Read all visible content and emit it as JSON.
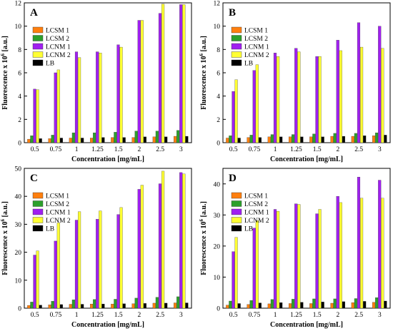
{
  "colors": {
    "LCSM 1": "#ff7f0e",
    "LCSM 2": "#2ca02c",
    "LCNM 1": "#a020f0",
    "LCNM 2": "#ffff33",
    "LB": "#000000"
  },
  "chart_data": [
    {
      "type": "bar",
      "panel": "A",
      "xlabel": "Concentration [mg/mL]",
      "ylabel": "Fluorescence x 10",
      "ylabel_sup": "6",
      "ylabel_unit": " [a.u.]",
      "ylim": [
        0,
        12
      ],
      "yticks": [
        0,
        2,
        4,
        6,
        8,
        10,
        12
      ],
      "legend_position": "top-left",
      "categories": [
        "0.5",
        "0.75",
        "1",
        "1.25",
        "1.5",
        "2",
        "2.5",
        "3"
      ],
      "series": [
        {
          "name": "LCSM 1",
          "values": [
            0.3,
            0.35,
            0.4,
            0.4,
            0.45,
            0.45,
            0.5,
            0.55
          ]
        },
        {
          "name": "LCSM 2",
          "values": [
            0.6,
            0.65,
            0.85,
            0.85,
            0.9,
            1.0,
            1.0,
            1.05
          ]
        },
        {
          "name": "LCNM 1",
          "values": [
            4.6,
            6.0,
            7.8,
            7.8,
            8.4,
            10.5,
            11.1,
            11.85
          ]
        },
        {
          "name": "LCNM 2",
          "values": [
            4.55,
            6.25,
            7.3,
            7.7,
            8.2,
            10.5,
            11.9,
            11.85
          ]
        },
        {
          "name": "LB",
          "values": [
            0.35,
            0.4,
            0.4,
            0.45,
            0.45,
            0.5,
            0.5,
            0.55
          ]
        }
      ]
    },
    {
      "type": "bar",
      "panel": "B",
      "xlabel": "Concentration [mg/mL]",
      "ylabel": "Fluorescence x 10",
      "ylabel_sup": "6",
      "ylabel_unit": " [a.u.]",
      "ylim": [
        0,
        12
      ],
      "yticks": [
        0,
        2,
        4,
        6,
        8,
        10,
        12
      ],
      "legend_position": "top-left",
      "categories": [
        "0.5",
        "0.75",
        "1",
        "1.25",
        "1.5",
        "2",
        "2.5",
        "3"
      ],
      "series": [
        {
          "name": "LCSM 1",
          "values": [
            0.4,
            0.45,
            0.5,
            0.5,
            0.5,
            0.55,
            0.55,
            0.6
          ]
        },
        {
          "name": "LCSM 2",
          "values": [
            0.6,
            0.65,
            0.7,
            0.7,
            0.75,
            0.8,
            0.8,
            0.85
          ]
        },
        {
          "name": "LCNM 1",
          "values": [
            4.4,
            6.2,
            7.7,
            8.1,
            7.4,
            8.8,
            10.3,
            10.0
          ]
        },
        {
          "name": "LCNM 2",
          "values": [
            5.4,
            6.7,
            7.4,
            7.8,
            7.4,
            7.9,
            8.2,
            8.1
          ]
        },
        {
          "name": "LB",
          "values": [
            0.4,
            0.45,
            0.5,
            0.5,
            0.5,
            0.55,
            0.6,
            0.65
          ]
        }
      ]
    },
    {
      "type": "bar",
      "panel": "C",
      "xlabel": "Concentration [mg/mL]",
      "ylabel": "Fluorescence x 10",
      "ylabel_sup": "6",
      "ylabel_unit": " [a.u.]",
      "ylim": [
        0,
        50
      ],
      "yticks": [
        0,
        10,
        20,
        30,
        40,
        50
      ],
      "legend_position": "top-left",
      "categories": [
        "0.5",
        "0.75",
        "1",
        "1.25",
        "1.5",
        "2",
        "2.5",
        "3"
      ],
      "series": [
        {
          "name": "LCSM 1",
          "values": [
            1.0,
            1.2,
            1.4,
            1.5,
            1.5,
            1.6,
            1.8,
            1.9
          ]
        },
        {
          "name": "LCSM 2",
          "values": [
            2.2,
            2.5,
            3.0,
            3.1,
            3.2,
            3.6,
            3.9,
            4.1
          ]
        },
        {
          "name": "LCNM 1",
          "values": [
            19.0,
            24.0,
            31.5,
            31.8,
            33.5,
            42.5,
            44.5,
            48.5
          ]
        },
        {
          "name": "LCNM 2",
          "values": [
            20.5,
            30.5,
            34.5,
            34.8,
            36.0,
            44.0,
            49.0,
            48.0
          ]
        },
        {
          "name": "LB",
          "values": [
            1.1,
            1.3,
            1.4,
            1.5,
            1.6,
            1.7,
            1.8,
            1.9
          ]
        }
      ]
    },
    {
      "type": "bar",
      "panel": "D",
      "xlabel": "Concentration [mg/mL]",
      "ylabel": "Fluorescence x 10",
      "ylabel_sup": "6",
      "ylabel_unit": " [a.u.]",
      "ylim": [
        0,
        45
      ],
      "yticks": [
        0,
        10,
        20,
        30,
        40
      ],
      "legend_position": "top-left",
      "categories": [
        "0.5",
        "0.75",
        "1",
        "1.25",
        "1.5",
        "2",
        "2.5",
        "3"
      ],
      "series": [
        {
          "name": "LCSM 1",
          "values": [
            1.0,
            1.2,
            1.4,
            1.5,
            1.5,
            1.6,
            1.8,
            1.9
          ]
        },
        {
          "name": "LCSM 2",
          "values": [
            2.3,
            2.5,
            2.8,
            2.9,
            3.0,
            3.0,
            3.1,
            3.4
          ]
        },
        {
          "name": "LCNM 1",
          "values": [
            18.2,
            25.8,
            31.8,
            33.6,
            30.4,
            36.0,
            42.2,
            41.2
          ]
        },
        {
          "name": "LCNM 2",
          "values": [
            22.8,
            28.2,
            31.2,
            33.4,
            31.8,
            34.0,
            35.4,
            35.4
          ]
        },
        {
          "name": "LB",
          "values": [
            1.5,
            1.7,
            1.8,
            1.9,
            2.0,
            2.1,
            2.2,
            2.3
          ]
        }
      ]
    }
  ]
}
